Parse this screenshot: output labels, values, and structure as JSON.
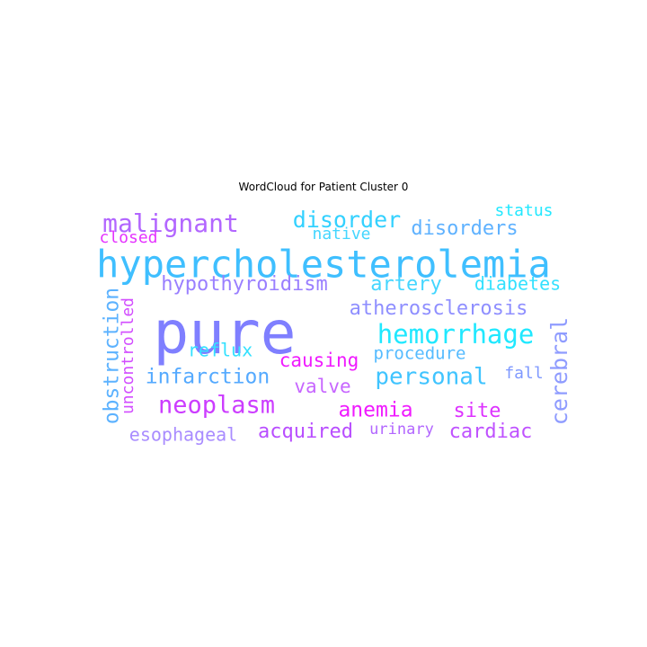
{
  "chart_data": {
    "type": "wordcloud",
    "title": "WordCloud for Patient Cluster 0",
    "words": [
      {
        "text": "pure",
        "color": "#7f7fff"
      },
      {
        "text": "hypercholesterolemia",
        "color": "#3fbfff"
      },
      {
        "text": "malignant",
        "color": "#b266ff"
      },
      {
        "text": "disorder",
        "color": "#33d1ff"
      },
      {
        "text": "disorders",
        "color": "#5fb2ff"
      },
      {
        "text": "status",
        "color": "#22e8ff"
      },
      {
        "text": "closed",
        "color": "#e533ff"
      },
      {
        "text": "native",
        "color": "#44d6ff"
      },
      {
        "text": "hypothyroidism",
        "color": "#9a7fff"
      },
      {
        "text": "artery",
        "color": "#44d6ff"
      },
      {
        "text": "diabetes",
        "color": "#33e1ff"
      },
      {
        "text": "atherosclerosis",
        "color": "#8f8fff"
      },
      {
        "text": "hemorrhage",
        "color": "#20e8ff"
      },
      {
        "text": "reflux",
        "color": "#33e1ff"
      },
      {
        "text": "procedure",
        "color": "#55bbff"
      },
      {
        "text": "causing",
        "color": "#f01aff"
      },
      {
        "text": "infarction",
        "color": "#55aaff"
      },
      {
        "text": "personal",
        "color": "#40c4ff"
      },
      {
        "text": "fall",
        "color": "#7f99ff"
      },
      {
        "text": "valve",
        "color": "#c766ff"
      },
      {
        "text": "neoplasm",
        "color": "#cc3dff"
      },
      {
        "text": "anemia",
        "color": "#f01aff"
      },
      {
        "text": "site",
        "color": "#dd33ff"
      },
      {
        "text": "acquired",
        "color": "#b84dff"
      },
      {
        "text": "urinary",
        "color": "#b266ff"
      },
      {
        "text": "cardiac",
        "color": "#bf52ff"
      },
      {
        "text": "esophageal",
        "color": "#a98cff"
      },
      {
        "text": "obstruction",
        "color": "#5cb2ff"
      },
      {
        "text": "uncontrolled",
        "color": "#d24dff"
      },
      {
        "text": "cerebral",
        "color": "#8f9cff"
      }
    ]
  }
}
